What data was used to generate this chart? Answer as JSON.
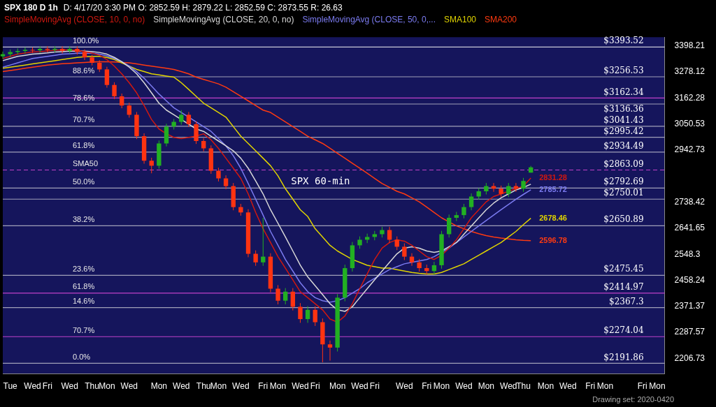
{
  "chart_data": {
    "type": "candlestick",
    "title": "SPX 180 D 1h",
    "subtitle": "D: 4/17/20 3:30 PM O: 2852.59 H: 2879.22 L: 2852.59 C: 2873.55 R: 26.63",
    "categories": [
      null,
      "Tue",
      null,
      null,
      "Wed",
      null,
      "Fri",
      null,
      null,
      "Wed",
      null,
      null,
      "Thu",
      null,
      "Mon",
      null,
      null,
      "Wed",
      null,
      null,
      null,
      "Mon",
      null,
      null,
      "Wed",
      null,
      null,
      "Thu",
      null,
      "Mon",
      null,
      null,
      "Wed",
      null,
      null,
      "Fri",
      null,
      "Mon",
      null,
      null,
      "Wed",
      null,
      "Fri",
      null,
      null,
      "Mon",
      null,
      null,
      "Wed",
      null,
      "Fri",
      null,
      null,
      null,
      "Wed",
      null,
      null,
      "Fri",
      null,
      "Mon",
      null,
      null,
      "Wed",
      null,
      null,
      "Mon",
      null,
      null,
      "Wed",
      null,
      "Thu",
      null,
      null,
      "Mon",
      null,
      null,
      "Wed",
      null,
      null,
      "Fri",
      null,
      "Mon",
      null,
      null,
      null,
      null,
      "Fri",
      null,
      "Mon",
      null
    ],
    "ohlc": [
      [
        3350,
        3372,
        3338,
        3360
      ],
      [
        3360,
        3382,
        3348,
        3370
      ],
      [
        3370,
        3387,
        3358,
        3375
      ],
      [
        3375,
        3392,
        3363,
        3380
      ],
      [
        3380,
        3392,
        3366,
        3378
      ],
      [
        3378,
        3397,
        3366,
        3385
      ],
      [
        3385,
        3397,
        3368,
        3380
      ],
      [
        3380,
        3397,
        3368,
        3385
      ],
      [
        3385,
        3397,
        3363,
        3375
      ],
      [
        3375,
        3397,
        3363,
        3385
      ],
      [
        3385,
        3397,
        3358,
        3370
      ],
      [
        3370,
        3382,
        3333,
        3345
      ],
      [
        3345,
        3357,
        3308,
        3320
      ],
      [
        3320,
        3332,
        3278,
        3290
      ],
      [
        3290,
        3302,
        3208,
        3220
      ],
      [
        3220,
        3232,
        3158,
        3170
      ],
      [
        3170,
        3182,
        3118,
        3130
      ],
      [
        3130,
        3142,
        3078,
        3090
      ],
      [
        3090,
        3102,
        2988,
        3000
      ],
      [
        3000,
        3012,
        2888,
        2900
      ],
      [
        2900,
        2912,
        2850,
        2880
      ],
      [
        2880,
        2982,
        2868,
        2970
      ],
      [
        2970,
        3052,
        2958,
        3040
      ],
      [
        3040,
        3072,
        3028,
        3060
      ],
      [
        3060,
        3110,
        3048,
        3090
      ],
      [
        3090,
        3102,
        3038,
        3050
      ],
      [
        3050,
        3062,
        2968,
        2980
      ],
      [
        2980,
        2992,
        2938,
        2950
      ],
      [
        2950,
        2962,
        2848,
        2860
      ],
      [
        2860,
        2872,
        2818,
        2830
      ],
      [
        2830,
        2842,
        2788,
        2800
      ],
      [
        2800,
        2812,
        2708,
        2720
      ],
      [
        2720,
        2732,
        2688,
        2700
      ],
      [
        2700,
        2712,
        2538,
        2550
      ],
      [
        2550,
        2562,
        2508,
        2520
      ],
      [
        2520,
        2680,
        2508,
        2540
      ],
      [
        2540,
        2552,
        2418,
        2430
      ],
      [
        2430,
        2442,
        2378,
        2390
      ],
      [
        2390,
        2432,
        2378,
        2420
      ],
      [
        2420,
        2432,
        2358,
        2370
      ],
      [
        2370,
        2382,
        2318,
        2330
      ],
      [
        2330,
        2372,
        2318,
        2360
      ],
      [
        2360,
        2372,
        2308,
        2320
      ],
      [
        2320,
        2332,
        2195,
        2250
      ],
      [
        2250,
        2262,
        2200,
        2240
      ],
      [
        2240,
        2412,
        2228,
        2400
      ],
      [
        2400,
        2512,
        2388,
        2500
      ],
      [
        2500,
        2592,
        2488,
        2580
      ],
      [
        2580,
        2612,
        2568,
        2600
      ],
      [
        2600,
        2622,
        2588,
        2610
      ],
      [
        2610,
        2632,
        2598,
        2620
      ],
      [
        2620,
        2647,
        2608,
        2635
      ],
      [
        2635,
        2647,
        2588,
        2600
      ],
      [
        2600,
        2612,
        2563,
        2575
      ],
      [
        2575,
        2587,
        2528,
        2540
      ],
      [
        2540,
        2552,
        2508,
        2520
      ],
      [
        2520,
        2532,
        2488,
        2500
      ],
      [
        2500,
        2512,
        2478,
        2490
      ],
      [
        2490,
        2522,
        2478,
        2510
      ],
      [
        2510,
        2632,
        2498,
        2620
      ],
      [
        2620,
        2692,
        2608,
        2680
      ],
      [
        2680,
        2702,
        2668,
        2690
      ],
      [
        2690,
        2732,
        2678,
        2720
      ],
      [
        2720,
        2772,
        2708,
        2760
      ],
      [
        2760,
        2792,
        2748,
        2780
      ],
      [
        2780,
        2812,
        2768,
        2800
      ],
      [
        2800,
        2812,
        2778,
        2790
      ],
      [
        2790,
        2802,
        2758,
        2770
      ],
      [
        2770,
        2812,
        2758,
        2800
      ],
      [
        2800,
        2812,
        2778,
        2790
      ],
      [
        2790,
        2832,
        2778,
        2820
      ],
      [
        2852.59,
        2879.22,
        2852.59,
        2873.55
      ],
      null,
      null,
      null,
      null,
      null,
      null,
      null,
      null,
      null,
      null,
      null,
      null,
      null,
      null,
      null,
      null,
      null,
      null
    ],
    "colors": [
      "#22b022",
      "#22b022",
      "#22b022",
      "#22b022",
      "#ff3311",
      "#22b022",
      "#ff3311",
      "#22b022",
      "#ff3311",
      "#22b022",
      "#ff3311",
      "#ff3311",
      "#ff3311",
      "#ff3311",
      "#ff3311",
      "#ff3311",
      "#ff3311",
      "#ff3311",
      "#ff3311",
      "#ff3311",
      "#ff3311",
      "#22b022",
      "#22b022",
      "#22b022",
      "#22b022",
      "#ff3311",
      "#ff3311",
      "#ff3311",
      "#ff3311",
      "#ff3311",
      "#ff3311",
      "#ff3311",
      "#ff3311",
      "#ff3311",
      "#ff3311",
      "#22b022",
      "#ff3311",
      "#ff3311",
      "#22b022",
      "#ff3311",
      "#ff3311",
      "#22b022",
      "#ff3311",
      "#ff3311",
      "#ff3311",
      "#22b022",
      "#22b022",
      "#22b022",
      "#22b022",
      "#22b022",
      "#22b022",
      "#22b022",
      "#ff3311",
      "#ff3311",
      "#ff3311",
      "#ff3311",
      "#ff3311",
      "#ff3311",
      "#22b022",
      "#22b022",
      "#22b022",
      "#22b022",
      "#22b022",
      "#22b022",
      "#22b022",
      "#22b022",
      "#ff3311",
      "#ff3311",
      "#22b022",
      "#ff3311",
      "#22b022",
      "#22b022",
      null,
      null,
      null,
      null,
      null,
      null,
      null,
      null,
      null,
      null,
      null,
      null,
      null,
      null,
      null,
      null,
      null,
      null
    ],
    "series": [
      {
        "name": "SimpleMovingAvg (CLOSE, 10, 0, no)",
        "type": "line",
        "color": "#d01810",
        "values": [
          3340,
          3350,
          3360,
          3365,
          3370,
          3372,
          3375,
          3378,
          3380,
          3380,
          3378,
          3372,
          3365,
          3355,
          3335,
          3305,
          3270,
          3230,
          3185,
          3130,
          3070,
          3030,
          3010,
          2995,
          2990,
          2995,
          3000,
          3010,
          2985,
          2950,
          2910,
          2870,
          2830,
          2770,
          2700,
          2640,
          2590,
          2540,
          2500,
          2460,
          2420,
          2400,
          2380,
          2360,
          2330,
          2320,
          2340,
          2380,
          2430,
          2480,
          2530,
          2570,
          2590,
          2600,
          2595,
          2580,
          2560,
          2540,
          2530,
          2545,
          2570,
          2600,
          2640,
          2680,
          2710,
          2740,
          2760,
          2770,
          2780,
          2790,
          2800,
          2831.28,
          null,
          null,
          null,
          null,
          null,
          null,
          null,
          null,
          null,
          null,
          null,
          null,
          null,
          null,
          null,
          null,
          null,
          null
        ],
        "value_labels": [
          null,
          null,
          null,
          null,
          null,
          null,
          null,
          null,
          null,
          null,
          null,
          null,
          null,
          null,
          null,
          null,
          null,
          null,
          null,
          null,
          null,
          null,
          null,
          null,
          null,
          null,
          null,
          null,
          null,
          null,
          null,
          null,
          null,
          null,
          null,
          null,
          null,
          null,
          null,
          null,
          null,
          null,
          null,
          null,
          null,
          null,
          null,
          null,
          null,
          null,
          null,
          null,
          null,
          null,
          null,
          null,
          null,
          null,
          null,
          null,
          null,
          null,
          null,
          null,
          null,
          null,
          null,
          null,
          null,
          null,
          null,
          "2831.28",
          null,
          null,
          null,
          null,
          null,
          null,
          null,
          null,
          null,
          null,
          null,
          null,
          null,
          null,
          null,
          null,
          null,
          null
        ]
      },
      {
        "name": "SimpleMovingAvg (CLOSE, 20, 0, no)",
        "type": "line",
        "color": "#d8d8d8",
        "values": [
          3330,
          3340,
          3350,
          3355,
          3360,
          3363,
          3366,
          3370,
          3372,
          3374,
          3375,
          3374,
          3372,
          3368,
          3360,
          3345,
          3325,
          3300,
          3270,
          3230,
          3185,
          3140,
          3110,
          3090,
          3070,
          3050,
          3030,
          3020,
          3000,
          2980,
          2960,
          2940,
          2910,
          2870,
          2820,
          2770,
          2710,
          2660,
          2610,
          2560,
          2510,
          2470,
          2440,
          2410,
          2380,
          2360,
          2355,
          2370,
          2400,
          2430,
          2460,
          2490,
          2520,
          2550,
          2570,
          2575,
          2570,
          2560,
          2555,
          2560,
          2575,
          2590,
          2620,
          2650,
          2680,
          2710,
          2735,
          2755,
          2770,
          2785,
          2795,
          2807.44,
          null,
          null,
          null,
          null,
          null,
          null,
          null,
          null,
          null,
          null,
          null,
          null,
          null,
          null,
          null,
          null,
          null,
          null
        ]
      },
      {
        "name": "SimpleMovingAvg (CLOSE, 50, 0,...",
        "type": "line",
        "color": "#7b7bf0",
        "values": [
          3300,
          3310,
          3320,
          3330,
          3340,
          3345,
          3350,
          3355,
          3360,
          3362,
          3364,
          3365,
          3364,
          3360,
          3352,
          3340,
          3325,
          3305,
          3280,
          3250,
          3215,
          3180,
          3150,
          3120,
          3100,
          3080,
          3060,
          3040,
          3020,
          2990,
          2960,
          2920,
          2870,
          2810,
          2750,
          2690,
          2630,
          2580,
          2530,
          2490,
          2450,
          2420,
          2400,
          2390,
          2385,
          2390,
          2400,
          2415,
          2430,
          2450,
          2465,
          2480,
          2495,
          2505,
          2515,
          2520,
          2525,
          2530,
          2540,
          2555,
          2570,
          2590,
          2610,
          2630,
          2650,
          2670,
          2690,
          2710,
          2730,
          2750,
          2768,
          2785.72,
          null,
          null,
          null,
          null,
          null,
          null,
          null,
          null,
          null,
          null,
          null,
          null,
          null,
          null,
          null,
          null,
          null,
          null
        ],
        "value_labels": [
          null,
          null,
          null,
          null,
          null,
          null,
          null,
          null,
          null,
          null,
          null,
          null,
          null,
          null,
          null,
          null,
          null,
          null,
          null,
          null,
          null,
          null,
          null,
          null,
          null,
          null,
          null,
          null,
          null,
          null,
          null,
          null,
          null,
          null,
          null,
          null,
          null,
          null,
          null,
          null,
          null,
          null,
          null,
          null,
          null,
          null,
          null,
          null,
          null,
          null,
          null,
          null,
          null,
          null,
          null,
          null,
          null,
          null,
          null,
          null,
          null,
          null,
          null,
          null,
          null,
          null,
          null,
          null,
          null,
          null,
          null,
          "2785.72",
          null,
          null,
          null,
          null,
          null,
          null,
          null,
          null,
          null,
          null,
          null,
          null,
          null,
          null,
          null,
          null,
          null,
          null
        ]
      },
      {
        "name": "SMA100",
        "type": "line",
        "color": "#e0d400",
        "values": [
          3295,
          3300,
          3305,
          3310,
          3315,
          3320,
          3325,
          3330,
          3335,
          3340,
          3345,
          3348,
          3350,
          3350,
          3345,
          3335,
          3320,
          3305,
          3290,
          3280,
          3270,
          3265,
          3260,
          3255,
          3230,
          3200,
          3170,
          3140,
          3120,
          3100,
          3080,
          3040,
          3000,
          2970,
          2940,
          2910,
          2880,
          2840,
          2790,
          2750,
          2710,
          2685,
          2640,
          2610,
          2580,
          2560,
          2545,
          2530,
          2520,
          2510,
          2505,
          2500,
          2500,
          2495,
          2490,
          2485,
          2482,
          2480,
          2480,
          2485,
          2495,
          2505,
          2515,
          2530,
          2545,
          2560,
          2575,
          2590,
          2610,
          2630,
          2655,
          2678.46,
          null,
          null,
          null,
          null,
          null,
          null,
          null,
          null,
          null,
          null,
          null,
          null,
          null,
          null,
          null,
          null,
          null,
          null
        ],
        "value_labels": [
          null,
          null,
          null,
          null,
          null,
          null,
          null,
          null,
          null,
          null,
          null,
          null,
          null,
          null,
          null,
          null,
          null,
          null,
          null,
          null,
          null,
          null,
          null,
          null,
          null,
          null,
          null,
          null,
          null,
          null,
          null,
          null,
          null,
          null,
          null,
          null,
          null,
          null,
          null,
          null,
          null,
          null,
          null,
          null,
          null,
          null,
          null,
          null,
          null,
          null,
          null,
          null,
          null,
          null,
          null,
          null,
          null,
          null,
          null,
          null,
          null,
          null,
          null,
          null,
          null,
          null,
          null,
          null,
          null,
          null,
          null,
          "2678.46",
          null,
          null,
          null,
          null,
          null,
          null,
          null,
          null,
          null,
          null,
          null,
          null,
          null,
          null,
          null,
          null,
          null,
          null
        ]
      },
      {
        "name": "SMA200",
        "type": "line",
        "color": "#ff3a10",
        "values": [
          3280,
          3285,
          3290,
          3295,
          3300,
          3305,
          3310,
          3313,
          3316,
          3318,
          3320,
          3322,
          3324,
          3325,
          3325,
          3324,
          3322,
          3320,
          3315,
          3310,
          3305,
          3300,
          3295,
          3290,
          3280,
          3270,
          3255,
          3245,
          3235,
          3225,
          3210,
          3190,
          3170,
          3150,
          3130,
          3110,
          3100,
          3080,
          3060,
          3040,
          3020,
          3000,
          2985,
          2970,
          2950,
          2930,
          2910,
          2890,
          2870,
          2850,
          2830,
          2810,
          2795,
          2780,
          2770,
          2755,
          2740,
          2720,
          2700,
          2680,
          2665,
          2650,
          2640,
          2630,
          2622,
          2615,
          2610,
          2606,
          2603,
          2600,
          2598,
          2596.78,
          null,
          null,
          null,
          null,
          null,
          null,
          null,
          null,
          null,
          null,
          null,
          null,
          null,
          null,
          null,
          null,
          null,
          null
        ],
        "value_labels": [
          null,
          null,
          null,
          null,
          null,
          null,
          null,
          null,
          null,
          null,
          null,
          null,
          null,
          null,
          null,
          null,
          null,
          null,
          null,
          null,
          null,
          null,
          null,
          null,
          null,
          null,
          null,
          null,
          null,
          null,
          null,
          null,
          null,
          null,
          null,
          null,
          null,
          null,
          null,
          null,
          null,
          null,
          null,
          null,
          null,
          null,
          null,
          null,
          null,
          null,
          null,
          null,
          null,
          null,
          null,
          null,
          null,
          null,
          null,
          null,
          null,
          null,
          null,
          null,
          null,
          null,
          null,
          null,
          null,
          null,
          null,
          "2596.78",
          null,
          null,
          null,
          null,
          null,
          null,
          null,
          null,
          null,
          null,
          null,
          null,
          null,
          null,
          null,
          null,
          null,
          null
        ]
      }
    ],
    "ylim": [
      2160,
      3440
    ],
    "yticks": [
      3398.21,
      3278.12,
      3162.28,
      3050.53,
      2942.73,
      2738.42,
      2641.65,
      2548.3,
      2458.24,
      2371.37,
      2287.57,
      2206.73
    ],
    "log": true,
    "legend": "top",
    "line_style": "solid",
    "ref_lines": [
      {
        "axis": "y",
        "value": 3393.52,
        "label": "$3393.52",
        "color": "#c8c8d8"
      },
      {
        "axis": "y",
        "value": 3256.53,
        "label": "$3256.53",
        "color": "#a0a0b8"
      },
      {
        "axis": "y",
        "value": 3162.34,
        "label": "$3162.34",
        "color": "#c040c8"
      },
      {
        "axis": "y",
        "value": 3136.36,
        "label": "$3136.36",
        "color": "#a0a0b8"
      },
      {
        "axis": "y",
        "value": 3041.43,
        "label": "$3041.43",
        "color": "#a0a0b8"
      },
      {
        "axis": "y",
        "value": 2995.42,
        "label": "$2995.42",
        "color": "#a0a0b8"
      },
      {
        "axis": "y",
        "value": 2934.49,
        "label": "$2934.49",
        "color": "#a0a0b8"
      },
      {
        "axis": "y",
        "value": 2863.09,
        "label": "$2863.09",
        "color": "#c040c8",
        "line_style": "dashed"
      },
      {
        "axis": "y",
        "value": 2792.69,
        "label": "$2792.69",
        "color": "#a0a0b8"
      },
      {
        "axis": "y",
        "value": 2750.01,
        "label": "$2750.01",
        "color": "#a0a0b8"
      },
      {
        "axis": "y",
        "value": 2650.89,
        "label": "$2650.89",
        "color": "#a0a0b8"
      },
      {
        "axis": "y",
        "value": 2475.45,
        "label": "$2475.45",
        "color": "#a0a0b8"
      },
      {
        "axis": "y",
        "value": 2414.97,
        "label": "$2414.97",
        "color": "#c040c8"
      },
      {
        "axis": "y",
        "value": 2367.3,
        "label": "$2367.3",
        "color": "#a0a0b8"
      },
      {
        "axis": "y",
        "value": 2274.04,
        "label": "$2274.04",
        "color": "#c040c8"
      },
      {
        "axis": "y",
        "value": 2191.86,
        "label": "$2191.86",
        "color": "#a0a0b8"
      }
    ],
    "annotations": [
      "SPX 60-min",
      "Drawing set: 2020-0420",
      {
        "text": "100.0%",
        "y": 3393.52
      },
      {
        "text": "88.6%",
        "y": 3256.53
      },
      {
        "text": "78.6%",
        "y": 3136.36
      },
      {
        "text": "70.7%",
        "y": 3041.43
      },
      {
        "text": "61.8%",
        "y": 2934.49
      },
      {
        "text": "SMA50",
        "y": 2863.09
      },
      {
        "text": "50.0%",
        "y": 2792.69
      },
      {
        "text": "38.2%",
        "y": 2650.89
      },
      {
        "text": "23.6%",
        "y": 2475.45
      },
      {
        "text": "61.8%",
        "y": 2414.97
      },
      {
        "text": "14.6%",
        "y": 2367.3
      },
      {
        "text": "70.7%",
        "y": 2274.04
      },
      {
        "text": "0.0%",
        "y": 2191.86
      }
    ]
  }
}
